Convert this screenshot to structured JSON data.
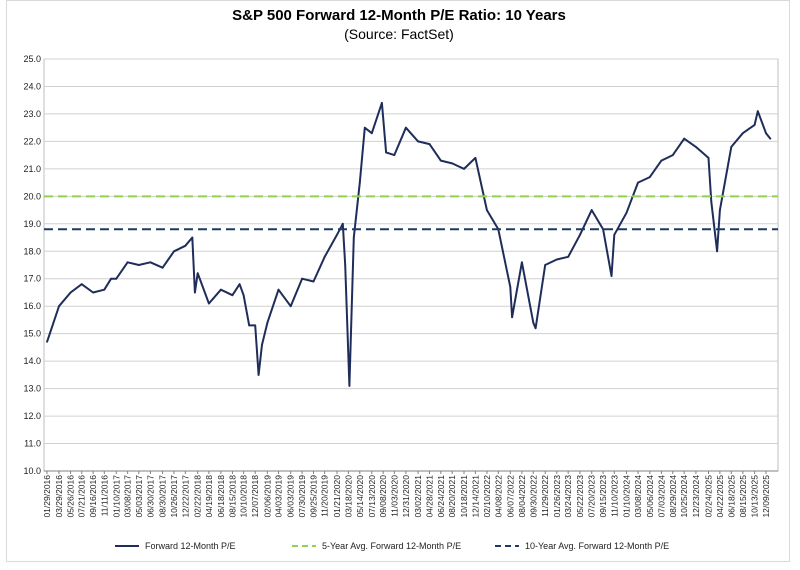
{
  "chart_data": {
    "type": "line",
    "title": "S&P 500 Forward 12-Month P/E Ratio: 10 Years",
    "subtitle": "(Source: FactSet)",
    "xlabel": "",
    "ylabel": "",
    "ylim": [
      10.0,
      25.0
    ],
    "y_ticks": [
      "10.0",
      "11.0",
      "12.0",
      "13.0",
      "14.0",
      "15.0",
      "16.0",
      "17.0",
      "18.0",
      "19.0",
      "20.0",
      "21.0",
      "22.0",
      "23.0",
      "24.0",
      "25.0"
    ],
    "x_tick_labels": [
      "01/29/2016",
      "03/29/2016",
      "05/26/2016",
      "07/21/2016",
      "09/16/2016",
      "11/11/2016",
      "01/10/2017",
      "03/08/2017",
      "05/03/2017",
      "06/30/2017",
      "08/30/2017",
      "10/26/2017",
      "12/22/2017",
      "02/22/2018",
      "04/19/2018",
      "06/18/2018",
      "08/15/2018",
      "10/10/2018",
      "12/07/2018",
      "02/06/2019",
      "04/03/2019",
      "06/03/2019",
      "07/30/2019",
      "09/25/2019",
      "11/20/2019",
      "01/21/2020",
      "03/18/2020",
      "05/14/2020",
      "07/13/2020",
      "09/08/2020",
      "11/03/2020",
      "12/31/2020",
      "03/02/2021",
      "04/28/2021",
      "06/24/2021",
      "08/20/2021",
      "10/18/2021",
      "12/14/2021",
      "02/10/2022",
      "04/08/2022",
      "06/07/2022",
      "08/04/2022",
      "09/30/2022",
      "11/29/2022",
      "01/26/2023",
      "03/24/2023",
      "05/22/2023",
      "07/20/2023",
      "09/15/2023",
      "11/10/2023",
      "01/10/2024",
      "03/08/2024",
      "05/06/2024",
      "07/03/2024",
      "08/29/2024",
      "10/25/2024",
      "12/23/2024",
      "02/24/2025",
      "04/22/2025",
      "06/18/2025",
      "08/15/2025",
      "10/13/2025",
      "12/09/2025"
    ],
    "grid": true,
    "legend_position": "bottom",
    "series": [
      {
        "name": "Forward 12-Month P/E",
        "color": "#1f2d5a",
        "style": "solid",
        "points": [
          [
            "01/29/2016",
            14.7
          ],
          [
            "02/12/2016",
            15.0
          ],
          [
            "03/29/2016",
            16.0
          ],
          [
            "05/26/2016",
            16.5
          ],
          [
            "07/21/2016",
            16.8
          ],
          [
            "09/16/2016",
            16.5
          ],
          [
            "11/11/2016",
            16.6
          ],
          [
            "12/15/2016",
            17.0
          ],
          [
            "01/10/2017",
            17.0
          ],
          [
            "03/08/2017",
            17.6
          ],
          [
            "05/03/2017",
            17.5
          ],
          [
            "06/30/2017",
            17.6
          ],
          [
            "08/30/2017",
            17.4
          ],
          [
            "10/26/2017",
            18.0
          ],
          [
            "12/22/2017",
            18.2
          ],
          [
            "01/26/2018",
            18.5
          ],
          [
            "02/08/2018",
            16.5
          ],
          [
            "02/22/2018",
            17.2
          ],
          [
            "04/19/2018",
            16.1
          ],
          [
            "06/18/2018",
            16.6
          ],
          [
            "08/15/2018",
            16.4
          ],
          [
            "09/20/2018",
            16.8
          ],
          [
            "10/10/2018",
            16.4
          ],
          [
            "11/07/2018",
            15.3
          ],
          [
            "12/07/2018",
            15.3
          ],
          [
            "12/24/2018",
            13.5
          ],
          [
            "01/10/2019",
            14.6
          ],
          [
            "02/06/2019",
            15.4
          ],
          [
            "04/03/2019",
            16.6
          ],
          [
            "06/03/2019",
            16.0
          ],
          [
            "07/30/2019",
            17.0
          ],
          [
            "09/25/2019",
            16.9
          ],
          [
            "11/20/2019",
            17.8
          ],
          [
            "01/21/2020",
            18.6
          ],
          [
            "02/19/2020",
            19.0
          ],
          [
            "03/02/2020",
            17.5
          ],
          [
            "03/23/2020",
            13.1
          ],
          [
            "04/14/2020",
            18.5
          ],
          [
            "05/14/2020",
            20.5
          ],
          [
            "06/08/2020",
            22.5
          ],
          [
            "07/13/2020",
            22.3
          ],
          [
            "09/02/2020",
            23.4
          ],
          [
            "09/23/2020",
            21.6
          ],
          [
            "11/03/2020",
            21.5
          ],
          [
            "12/31/2020",
            22.5
          ],
          [
            "03/02/2021",
            22.0
          ],
          [
            "04/28/2021",
            21.9
          ],
          [
            "06/24/2021",
            21.3
          ],
          [
            "08/20/2021",
            21.2
          ],
          [
            "10/18/2021",
            21.0
          ],
          [
            "12/14/2021",
            21.4
          ],
          [
            "02/10/2022",
            19.5
          ],
          [
            "04/08/2022",
            18.8
          ],
          [
            "06/07/2022",
            16.7
          ],
          [
            "06/16/2022",
            15.6
          ],
          [
            "08/04/2022",
            17.6
          ],
          [
            "09/30/2022",
            15.4
          ],
          [
            "10/12/2022",
            15.2
          ],
          [
            "11/29/2022",
            17.5
          ],
          [
            "01/26/2023",
            17.7
          ],
          [
            "03/24/2023",
            17.8
          ],
          [
            "05/22/2023",
            18.6
          ],
          [
            "07/20/2023",
            19.5
          ],
          [
            "09/15/2023",
            18.8
          ],
          [
            "10/27/2023",
            17.1
          ],
          [
            "11/10/2023",
            18.6
          ],
          [
            "01/10/2024",
            19.4
          ],
          [
            "03/08/2024",
            20.5
          ],
          [
            "05/06/2024",
            20.7
          ],
          [
            "07/03/2024",
            21.3
          ],
          [
            "08/29/2024",
            21.5
          ],
          [
            "10/25/2024",
            22.1
          ],
          [
            "12/23/2024",
            21.8
          ],
          [
            "02/24/2025",
            21.4
          ],
          [
            "03/10/2025",
            19.8
          ],
          [
            "04/08/2025",
            18.0
          ],
          [
            "04/22/2025",
            19.5
          ],
          [
            "06/18/2025",
            21.8
          ],
          [
            "08/15/2025",
            22.3
          ],
          [
            "10/13/2025",
            22.6
          ],
          [
            "10/29/2025",
            23.1
          ],
          [
            "12/09/2025",
            22.3
          ],
          [
            "12/31/2025",
            22.1
          ]
        ]
      },
      {
        "name": "5-Year Avg. Forward 12-Month P/E",
        "color": "#92d050",
        "style": "dashed",
        "value": 20.0
      },
      {
        "name": "10-Year Avg. Forward 12-Month P/E",
        "color": "#1f3864",
        "style": "dashed",
        "value": 18.8
      }
    ]
  }
}
